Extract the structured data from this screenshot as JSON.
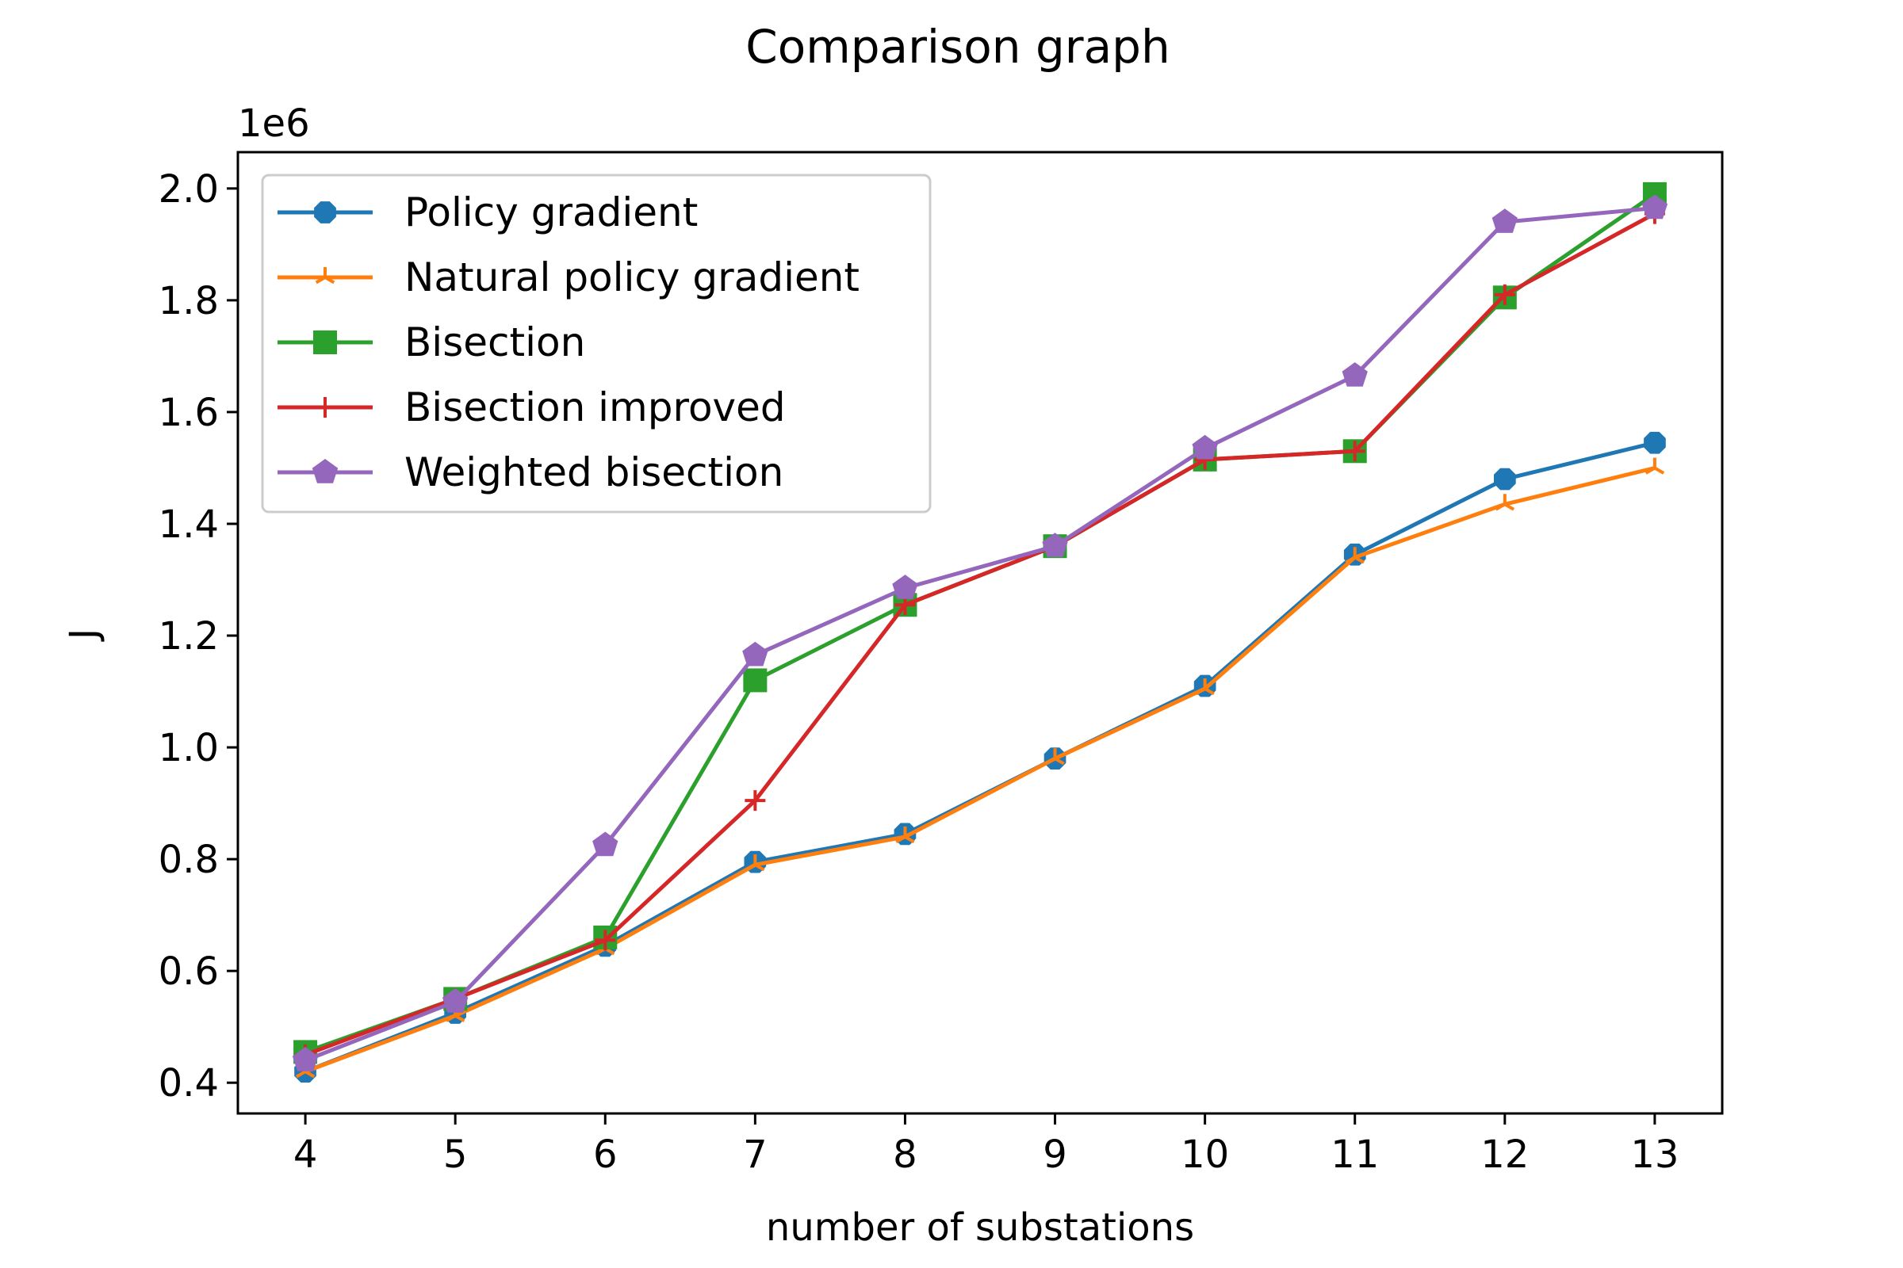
{
  "chart_data": {
    "type": "line",
    "title": "Comparison graph",
    "xlabel": "number of substations",
    "ylabel": "J",
    "y_offset_label": "1e6",
    "xlim": [
      3.55,
      13.45
    ],
    "ylim": [
      0.345,
      2.065
    ],
    "x": [
      4,
      5,
      6,
      7,
      8,
      9,
      10,
      11,
      12,
      13
    ],
    "x_ticks": [
      "4",
      "5",
      "6",
      "7",
      "8",
      "9",
      "10",
      "11",
      "12",
      "13"
    ],
    "y_tick_values": [
      0.4,
      0.6,
      0.8,
      1.0,
      1.2,
      1.4,
      1.6,
      1.8,
      2.0
    ],
    "y_ticks": [
      "0.4",
      "0.6",
      "0.8",
      "1.0",
      "1.2",
      "1.4",
      "1.6",
      "1.8",
      "2.0"
    ],
    "grid": false,
    "legend_position": "top-left",
    "series": [
      {
        "name": "Policy gradient",
        "color": "#1f77b4",
        "marker": "octagon",
        "values": [
          0.42,
          0.525,
          0.645,
          0.795,
          0.845,
          0.98,
          1.11,
          1.345,
          1.48,
          1.545
        ]
      },
      {
        "name": "Natural policy gradient",
        "color": "#ff7f0e",
        "marker": "tri",
        "values": [
          0.42,
          0.52,
          0.64,
          0.79,
          0.84,
          0.98,
          1.105,
          1.34,
          1.435,
          1.5
        ]
      },
      {
        "name": "Bisection",
        "color": "#2ca02c",
        "marker": "square",
        "values": [
          0.455,
          0.55,
          0.66,
          1.12,
          1.255,
          1.36,
          1.515,
          1.53,
          1.805,
          1.99
        ]
      },
      {
        "name": "Bisection improved",
        "color": "#d62728",
        "marker": "plus",
        "values": [
          0.45,
          0.55,
          0.655,
          0.905,
          1.255,
          1.36,
          1.515,
          1.53,
          1.81,
          1.955
        ]
      },
      {
        "name": "Weighted bisection",
        "color": "#9467bd",
        "marker": "pentagon",
        "values": [
          0.44,
          0.545,
          0.825,
          1.165,
          1.285,
          1.36,
          1.535,
          1.665,
          1.94,
          1.965
        ]
      }
    ]
  }
}
